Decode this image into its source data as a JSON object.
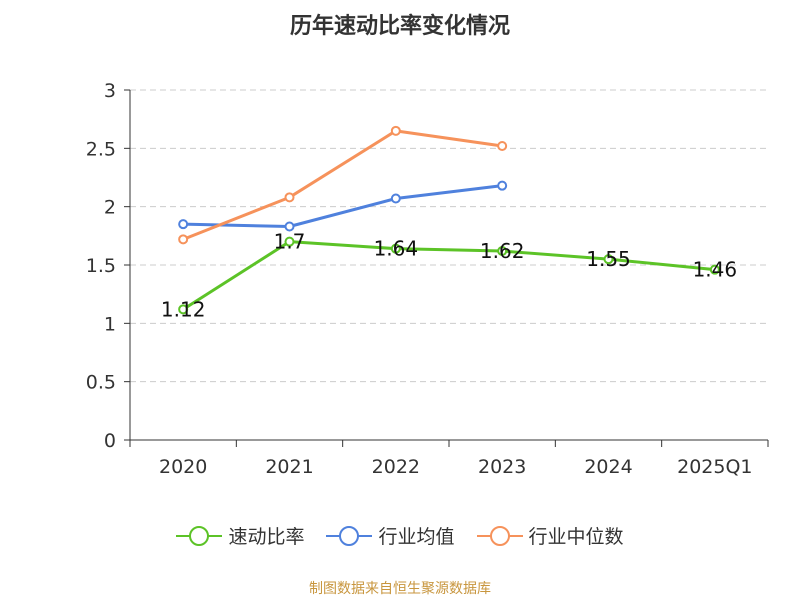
{
  "chart_data": {
    "type": "line",
    "title": "历年速动比率变化情况",
    "categories": [
      "2020",
      "2021",
      "2022",
      "2023",
      "2024",
      "2025Q1"
    ],
    "ylim": [
      0,
      3
    ],
    "yticks": [
      "0",
      "0.5",
      "1",
      "1.5",
      "2",
      "2.5",
      "3"
    ],
    "grid": true,
    "legend_position": "bottom",
    "series": [
      {
        "name": "速动比率",
        "color": "#5cc327",
        "values": [
          1.12,
          1.7,
          1.64,
          1.62,
          1.55,
          1.46
        ],
        "labels": [
          "1.12",
          "1.7",
          "1.64",
          "1.62",
          "1.55",
          "1.46"
        ]
      },
      {
        "name": "行业均值",
        "color": "#4f81dd",
        "values": [
          1.85,
          1.83,
          2.07,
          2.18,
          null,
          null
        ]
      },
      {
        "name": "行业中位数",
        "color": "#f6925b",
        "values": [
          1.72,
          2.08,
          2.65,
          2.52,
          null,
          null
        ]
      }
    ]
  },
  "source": "制图数据来自恒生聚源数据库"
}
